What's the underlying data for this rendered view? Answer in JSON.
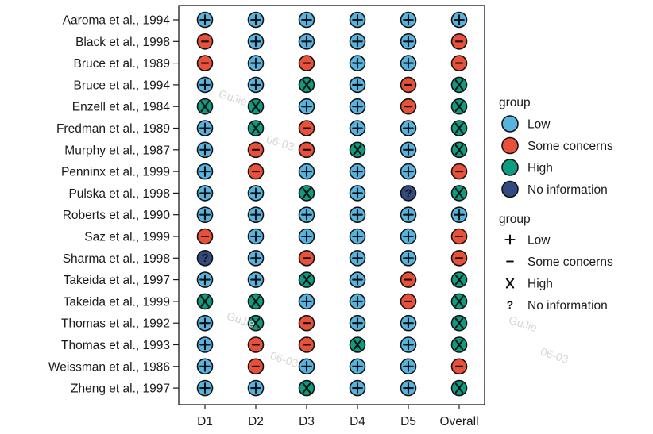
{
  "chart_data": {
    "type": "table",
    "columns": [
      "D1",
      "D2",
      "D3",
      "D4",
      "D5",
      "Overall"
    ],
    "studies": [
      {
        "name": "Aaroma et al., 1994",
        "ratings": [
          "Low",
          "Low",
          "Low",
          "Low",
          "Low",
          "Low"
        ]
      },
      {
        "name": "Black et al., 1998",
        "ratings": [
          "Some concerns",
          "Low",
          "Low",
          "Low",
          "Low",
          "Some concerns"
        ]
      },
      {
        "name": "Bruce et al., 1989",
        "ratings": [
          "Some concerns",
          "Low",
          "Some concerns",
          "Low",
          "Low",
          "Some concerns"
        ]
      },
      {
        "name": "Bruce et al., 1994",
        "ratings": [
          "Low",
          "Low",
          "High",
          "Low",
          "Some concerns",
          "High"
        ]
      },
      {
        "name": "Enzell et al., 1984",
        "ratings": [
          "High",
          "High",
          "Low",
          "Low",
          "Some concerns",
          "High"
        ]
      },
      {
        "name": "Fredman et al., 1989",
        "ratings": [
          "Low",
          "High",
          "Some concerns",
          "Low",
          "Low",
          "High"
        ]
      },
      {
        "name": "Murphy et al., 1987",
        "ratings": [
          "Low",
          "Some concerns",
          "Some concerns",
          "High",
          "Low",
          "High"
        ]
      },
      {
        "name": "Penninx et al., 1999",
        "ratings": [
          "Low",
          "Some concerns",
          "Low",
          "Low",
          "Low",
          "Some concerns"
        ]
      },
      {
        "name": "Pulska et al., 1998",
        "ratings": [
          "Low",
          "Low",
          "High",
          "Low",
          "No information",
          "High"
        ]
      },
      {
        "name": "Roberts et al., 1990",
        "ratings": [
          "Low",
          "Low",
          "Low",
          "Low",
          "Low",
          "Low"
        ]
      },
      {
        "name": "Saz et al., 1999",
        "ratings": [
          "Some concerns",
          "Low",
          "Low",
          "Low",
          "Low",
          "Some concerns"
        ]
      },
      {
        "name": "Sharma et al., 1998",
        "ratings": [
          "No information",
          "Low",
          "Some concerns",
          "Low",
          "Low",
          "Some concerns"
        ]
      },
      {
        "name": "Takeida et al., 1997",
        "ratings": [
          "Low",
          "Low",
          "High",
          "Low",
          "Some concerns",
          "High"
        ]
      },
      {
        "name": "Takeida et al., 1999",
        "ratings": [
          "High",
          "High",
          "Low",
          "Low",
          "Some concerns",
          "High"
        ]
      },
      {
        "name": "Thomas et al., 1992",
        "ratings": [
          "Low",
          "High",
          "Some concerns",
          "Low",
          "Low",
          "High"
        ]
      },
      {
        "name": "Thomas et al., 1993",
        "ratings": [
          "Low",
          "Some concerns",
          "Some concerns",
          "High",
          "Low",
          "High"
        ]
      },
      {
        "name": "Weissman et al., 1986",
        "ratings": [
          "Low",
          "Some concerns",
          "Low",
          "Low",
          "Low",
          "Some concerns"
        ]
      },
      {
        "name": "Zheng et al., 1997",
        "ratings": [
          "Low",
          "Low",
          "High",
          "Low",
          "Low",
          "High"
        ]
      }
    ],
    "legend_fill": {
      "title": "group",
      "entries": [
        "Low",
        "Some concerns",
        "High",
        "No information"
      ]
    },
    "legend_symbol": {
      "title": "group",
      "entries": [
        {
          "label": "Low",
          "symbol": "+"
        },
        {
          "label": "Some concerns",
          "symbol": "-"
        },
        {
          "label": "High",
          "symbol": "X"
        },
        {
          "label": "No information",
          "symbol": "?"
        }
      ]
    },
    "colors": {
      "Low": "#56b4e0",
      "Some concerns": "#e8503a",
      "High": "#0e9c80",
      "No information": "#334a80"
    },
    "symbols": {
      "Low": "+",
      "Some concerns": "-",
      "High": "X",
      "No information": "?"
    },
    "legend_position": "right",
    "grid": false
  },
  "watermarks": [
    "GuJie",
    "06-03",
    "GuJie",
    "06-03",
    "GuJie",
    "06-03"
  ]
}
